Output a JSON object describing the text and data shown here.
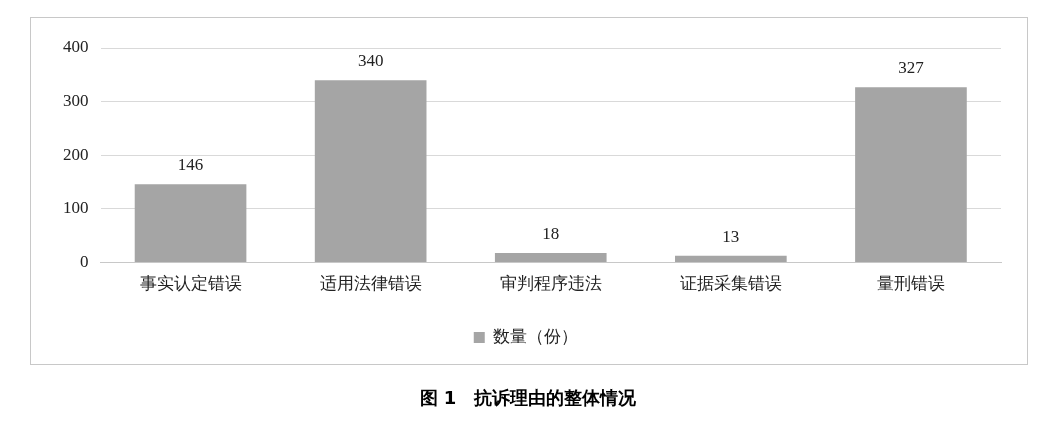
{
  "chart_data": {
    "type": "bar",
    "title": "图 1　抗诉理由的整体情况",
    "categories": [
      "事实认定错误",
      "适用法律错误",
      "审判程序违法",
      "证据采集错误",
      "量刑错误"
    ],
    "series": [
      {
        "name": "数量（份）",
        "color": "#a5a5a5",
        "values": [
          146,
          340,
          18,
          13,
          327
        ]
      }
    ],
    "ylim": [
      0,
      400
    ],
    "yticks": [
      0,
      100,
      200,
      300,
      400
    ],
    "grid": "y",
    "legend": "bottom",
    "data_labels": true
  }
}
